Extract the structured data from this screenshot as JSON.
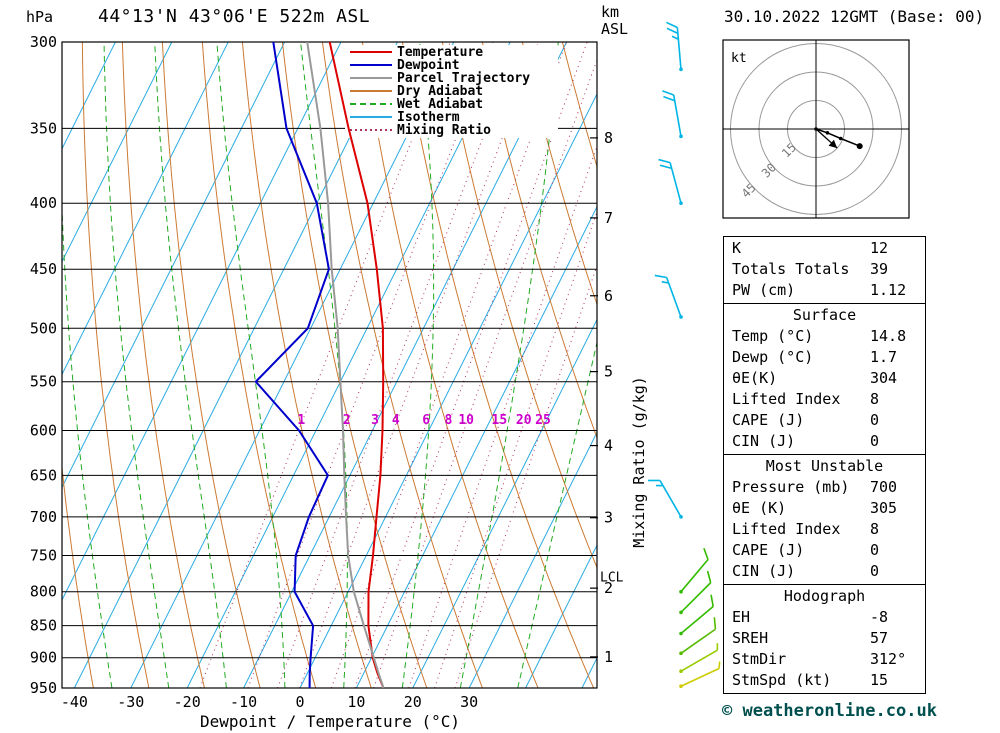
{
  "header": {
    "pressure_unit": "hPa",
    "title": "44°13'N 43°06'E 522m ASL",
    "km_label": "km",
    "asl_label": "ASL",
    "datetime": "30.10.2022 12GMT (Base: 00)"
  },
  "axes": {
    "xlabel": "Dewpoint / Temperature (°C)",
    "mixing_ratio_axis_label": "Mixing Ratio (g/kg)",
    "pressure_ticks_hpa": [
      300,
      350,
      400,
      450,
      500,
      550,
      600,
      650,
      700,
      750,
      800,
      850,
      900,
      950
    ],
    "temp_ticks_c": [
      -40,
      -30,
      -20,
      -10,
      0,
      10,
      20,
      30
    ],
    "km_ticks": [
      1,
      2,
      3,
      4,
      5,
      6,
      7,
      8
    ],
    "lcl_label": "LCL",
    "mixing_ratio_labels_gkg": [
      1,
      2,
      3,
      4,
      6,
      8,
      10,
      15,
      20,
      25
    ]
  },
  "chart_data": {
    "type": "line",
    "title": "Skew-T log-P sounding 44°13'N 43°06'E 522m ASL, 30.10.2022 12GMT (Base: 00)",
    "xlabel": "Dewpoint / Temperature (°C)",
    "ylabel": "Pressure (hPa)",
    "x_range_c": [
      -40,
      38
    ],
    "pressure_range_hpa": [
      950,
      300
    ],
    "grid": "on",
    "legend_position": "top-inside",
    "legend": [
      {
        "label": "Temperature",
        "color": "#dd0000",
        "dash": ""
      },
      {
        "label": "Dewpoint",
        "color": "#0000cc",
        "dash": ""
      },
      {
        "label": "Parcel Trajectory",
        "color": "#999999",
        "dash": ""
      },
      {
        "label": "Dry Adiabat",
        "color": "#cc7a33",
        "dash": ""
      },
      {
        "label": "Wet Adiabat",
        "color": "#22aa22",
        "dash": "6,4"
      },
      {
        "label": "Isotherm",
        "color": "#29abe2",
        "dash": ""
      },
      {
        "label": "Mixing Ratio",
        "color": "#b03060",
        "dash": "2,3"
      }
    ],
    "levels_hpa": [
      950,
      925,
      900,
      850,
      800,
      750,
      700,
      650,
      600,
      550,
      500,
      450,
      400,
      350,
      300
    ],
    "series": [
      {
        "name": "Temperature",
        "color": "#dd0000",
        "values_c": [
          14.8,
          12.4,
          10.2,
          6.6,
          3.6,
          1.2,
          -1.6,
          -4.6,
          -8.2,
          -12.4,
          -17.2,
          -23.5,
          -31.0,
          -41.0,
          -52.0
        ]
      },
      {
        "name": "Dewpoint",
        "color": "#0000cc",
        "values_c": [
          1.7,
          0.4,
          -0.8,
          -3.2,
          -9.5,
          -12.5,
          -13.6,
          -13.9,
          -23.0,
          -35.0,
          -30.5,
          -32.0,
          -40.0,
          -52.0,
          -62.0
        ]
      },
      {
        "name": "Parcel Trajectory",
        "color": "#999999",
        "values_c": [
          14.8,
          12.6,
          10.4,
          5.8,
          1.0,
          -3.2,
          -7.0,
          -11.0,
          -15.2,
          -20.0,
          -25.2,
          -31.5,
          -38.0,
          -46.0,
          -56.0
        ]
      }
    ],
    "lcl_hpa": 780,
    "surface": {
      "temp_c": 14.8,
      "dewpoint_c": 1.7
    },
    "wind_barbs": [
      {
        "p_hpa": 315,
        "dir_deg": 355,
        "speed_kt": 25,
        "color": "#00b4e6"
      },
      {
        "p_hpa": 355,
        "dir_deg": 350,
        "speed_kt": 20,
        "color": "#00b4e6"
      },
      {
        "p_hpa": 400,
        "dir_deg": 345,
        "speed_kt": 20,
        "color": "#00b4e6"
      },
      {
        "p_hpa": 490,
        "dir_deg": 340,
        "speed_kt": 15,
        "color": "#00b4e6"
      },
      {
        "p_hpa": 700,
        "dir_deg": 330,
        "speed_kt": 15,
        "color": "#00b4e6"
      },
      {
        "p_hpa": 800,
        "dir_deg": 40,
        "speed_kt": 10,
        "color": "#33bb00"
      },
      {
        "p_hpa": 830,
        "dir_deg": 45,
        "speed_kt": 10,
        "color": "#33bb00"
      },
      {
        "p_hpa": 862,
        "dir_deg": 50,
        "speed_kt": 10,
        "color": "#33bb00"
      },
      {
        "p_hpa": 893,
        "dir_deg": 55,
        "speed_kt": 10,
        "color": "#55bb00"
      },
      {
        "p_hpa": 922,
        "dir_deg": 60,
        "speed_kt": 5,
        "color": "#99cc00"
      },
      {
        "p_hpa": 947,
        "dir_deg": 65,
        "speed_kt": 5,
        "color": "#cccc00"
      }
    ],
    "hodograph": {
      "unit_label": "kt",
      "rings_kt": [
        15,
        30,
        45
      ],
      "trace_uv_kt": [
        [
          0,
          0
        ],
        [
          6,
          -2
        ],
        [
          13,
          -5
        ],
        [
          23,
          -9
        ]
      ],
      "storm_motion": {
        "dir_deg": 312,
        "speed_kt": 15
      }
    }
  },
  "tables": {
    "indices": {
      "rows": [
        [
          "K",
          "12"
        ],
        [
          "Totals Totals",
          "39"
        ],
        [
          "PW (cm)",
          "1.12"
        ]
      ]
    },
    "surface": {
      "header": "Surface",
      "rows": [
        [
          "Temp (°C)",
          "14.8"
        ],
        [
          "Dewp (°C)",
          "1.7"
        ],
        [
          "θE(K)",
          "304"
        ],
        [
          "Lifted Index",
          "8"
        ],
        [
          "CAPE (J)",
          "0"
        ],
        [
          "CIN (J)",
          "0"
        ]
      ]
    },
    "most_unstable": {
      "header": "Most Unstable",
      "rows": [
        [
          "Pressure (mb)",
          "700"
        ],
        [
          "θE (K)",
          "305"
        ],
        [
          "Lifted Index",
          "8"
        ],
        [
          "CAPE (J)",
          "0"
        ],
        [
          "CIN (J)",
          "0"
        ]
      ]
    },
    "hodograph": {
      "header": "Hodograph",
      "rows": [
        [
          "EH",
          "-8"
        ],
        [
          "SREH",
          "57"
        ],
        [
          "StmDir",
          "312°"
        ],
        [
          "StmSpd (kt)",
          "15"
        ]
      ]
    }
  },
  "footer": {
    "copyright": "© weatheronline.co.uk"
  }
}
